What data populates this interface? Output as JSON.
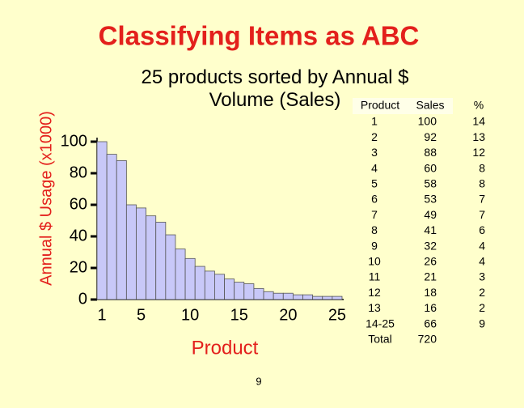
{
  "chart_data": {
    "type": "bar",
    "title": "Classifying Items as ABC",
    "subtitle": "25 products sorted by Annual $ Volume (Sales)",
    "y_label": "Annual $ Usage (x1000)",
    "x_label": "Product",
    "categories": [
      "1",
      null,
      null,
      null,
      "5",
      null,
      null,
      null,
      null,
      "10",
      null,
      null,
      null,
      null,
      "15",
      null,
      null,
      null,
      null,
      "20",
      null,
      null,
      null,
      null,
      "25"
    ],
    "values": [
      100,
      92,
      88,
      60,
      58,
      53,
      49,
      41,
      32,
      26,
      21,
      18,
      16,
      13,
      11,
      10,
      7,
      5,
      4,
      4,
      3,
      3,
      2,
      2,
      2
    ],
    "color": "#c8c8f8",
    "ylim": [
      0,
      100
    ],
    "yticks": [
      0,
      20,
      40,
      60,
      80,
      100
    ],
    "grid": false
  },
  "table": {
    "header": [
      "Product",
      "Sales",
      "%"
    ],
    "rows": [
      [
        1,
        100,
        14
      ],
      [
        2,
        92,
        13
      ],
      [
        3,
        88,
        12
      ],
      [
        4,
        60,
        8
      ],
      [
        5,
        58,
        8
      ],
      [
        6,
        53,
        7
      ],
      [
        7,
        49,
        7
      ],
      [
        8,
        41,
        6
      ],
      [
        9,
        32,
        4
      ],
      [
        10,
        26,
        4
      ],
      [
        11,
        21,
        3
      ],
      [
        12,
        18,
        2
      ],
      [
        13,
        16,
        2
      ],
      [
        "14-25",
        66,
        9
      ],
      [
        "Total",
        720
      ]
    ]
  },
  "page_number": 9
}
